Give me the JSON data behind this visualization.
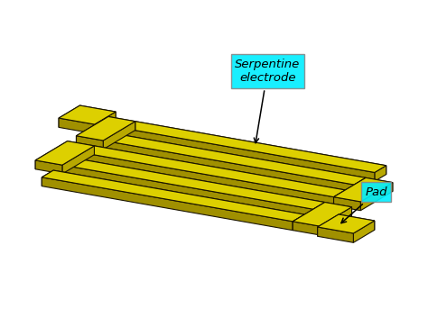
{
  "bg_color": "#ffffff",
  "top_color": "#ddd000",
  "side_dark": "#a09000",
  "side_mid": "#b8a800",
  "edge_color": "#1a1400",
  "edge_lw": 0.8,
  "ann_box_color": "#00eeff",
  "label_serpentine": "Serpentine\nelectrode",
  "label_pad": "Pad",
  "fig_width": 4.74,
  "fig_height": 3.63,
  "dpi": 100
}
